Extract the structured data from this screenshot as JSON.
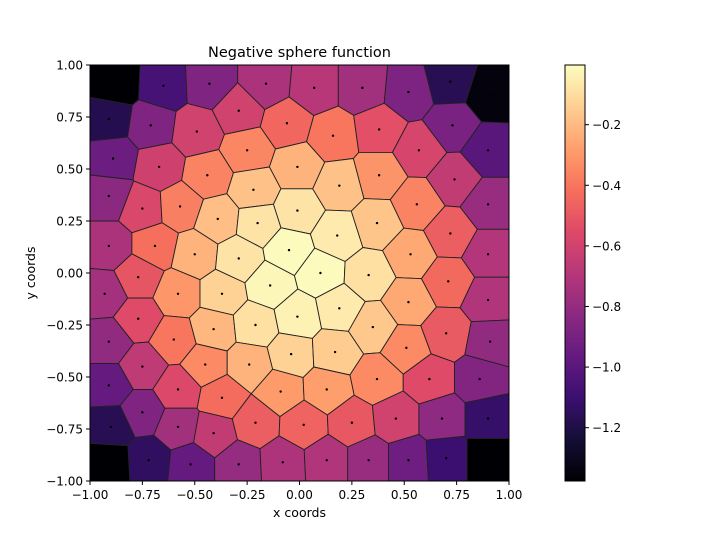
{
  "chart_data": {
    "type": "voronoi",
    "title": "Negative sphere function",
    "xlabel": "x coords",
    "ylabel": "y coords",
    "xlim": [
      -1,
      1
    ],
    "ylim": [
      -1,
      1
    ],
    "xticks": [
      "−1.00",
      "−0.75",
      "−0.50",
      "−0.25",
      "0.00",
      "0.25",
      "0.50",
      "0.75",
      "1.00"
    ],
    "xtick_values": [
      -1,
      -0.75,
      -0.5,
      -0.25,
      0,
      0.25,
      0.5,
      0.75,
      1
    ],
    "yticks": [
      "−1.00",
      "−0.75",
      "−0.50",
      "−0.25",
      "0.00",
      "0.25",
      "0.50",
      "0.75",
      "1.00"
    ],
    "ytick_values": [
      -1,
      -0.75,
      -0.5,
      -0.25,
      0,
      0.25,
      0.5,
      0.75,
      1
    ],
    "colormap": "magma",
    "clim": [
      -1.376,
      -0.003
    ],
    "colorbar_ticks": [
      "−1.2",
      "−1.0",
      "−0.8",
      "−0.6",
      "−0.4",
      "−0.2"
    ],
    "colorbar_tick_values": [
      -1.2,
      -1.0,
      -0.8,
      -0.6,
      -0.4,
      -0.2
    ],
    "magma_stops": [
      "#000004",
      "#140e36",
      "#3b0f70",
      "#641a80",
      "#8c2981",
      "#b73779",
      "#de4968",
      "#f7705c",
      "#fe9f6d",
      "#fecf92",
      "#fcfdbf"
    ],
    "points": [
      [
        -0.88,
        0.91,
        -1.38
      ],
      [
        -0.65,
        0.9,
        -1.06
      ],
      [
        -0.43,
        0.91,
        -0.87
      ],
      [
        -0.16,
        0.91,
        -0.73
      ],
      [
        -0.91,
        0.74,
        -1.18
      ],
      [
        -0.71,
        0.71,
        -0.87
      ],
      [
        -0.49,
        0.68,
        -0.6
      ],
      [
        -0.29,
        0.78,
        -0.6
      ],
      [
        -0.06,
        0.72,
        -0.45
      ],
      [
        -0.89,
        0.55,
        -0.94
      ],
      [
        -0.67,
        0.51,
        -0.61
      ],
      [
        -0.44,
        0.47,
        -0.36
      ],
      [
        -0.25,
        0.59,
        -0.35
      ],
      [
        -0.01,
        0.51,
        -0.22
      ],
      [
        -0.91,
        0.37,
        -0.83
      ],
      [
        -0.75,
        0.31,
        -0.57
      ],
      [
        -0.57,
        0.32,
        -0.37
      ],
      [
        -0.22,
        0.4,
        -0.18
      ],
      [
        -0.39,
        0.26,
        -0.19
      ],
      [
        -0.2,
        0.24,
        -0.08
      ],
      [
        -0.01,
        0.3,
        -0.08
      ],
      [
        -0.91,
        0.13,
        -0.73
      ],
      [
        -0.69,
        0.13,
        -0.42
      ],
      [
        -0.5,
        0.09,
        -0.22
      ],
      [
        -0.29,
        0.07,
        -0.08
      ],
      [
        -0.05,
        0.11,
        -0.01
      ],
      [
        0.07,
        0.89,
        -0.69
      ],
      [
        0.3,
        0.89,
        -0.76
      ],
      [
        0.52,
        0.87,
        -0.88
      ],
      [
        0.72,
        0.92,
        -1.17
      ],
      [
        0.91,
        0.86,
        -1.35
      ],
      [
        0.16,
        0.66,
        -0.4
      ],
      [
        0.38,
        0.69,
        -0.53
      ],
      [
        0.73,
        0.71,
        -0.89
      ],
      [
        0.57,
        0.59,
        -0.58
      ],
      [
        0.9,
        0.59,
        -1.0
      ],
      [
        0.19,
        0.42,
        -0.18
      ],
      [
        0.38,
        0.47,
        -0.31
      ],
      [
        0.74,
        0.45,
        -0.65
      ],
      [
        0.9,
        0.33,
        -0.79
      ],
      [
        0.56,
        0.33,
        -0.36
      ],
      [
        0.18,
        0.18,
        -0.06
      ],
      [
        0.37,
        0.24,
        -0.17
      ],
      [
        0.72,
        0.19,
        -0.48
      ],
      [
        0.53,
        0.09,
        -0.25
      ],
      [
        0.9,
        0.09,
        -0.7
      ],
      [
        0.1,
        0.0,
        -0.01
      ],
      [
        -0.93,
        -0.1,
        -0.75
      ],
      [
        -0.77,
        -0.02,
        -0.51
      ],
      [
        -0.58,
        -0.1,
        -0.3
      ],
      [
        -0.37,
        -0.1,
        -0.13
      ],
      [
        -0.14,
        -0.06,
        -0.02
      ],
      [
        -0.77,
        -0.22,
        -0.55
      ],
      [
        -0.91,
        -0.33,
        -0.81
      ],
      [
        -0.6,
        -0.32,
        -0.4
      ],
      [
        -0.41,
        -0.27,
        -0.21
      ],
      [
        -0.21,
        -0.25,
        -0.09
      ],
      [
        -0.01,
        -0.21,
        -0.04
      ],
      [
        -0.75,
        -0.45,
        -0.66
      ],
      [
        -0.91,
        -0.54,
        -0.96
      ],
      [
        -0.58,
        -0.56,
        -0.56
      ],
      [
        -0.45,
        -0.44,
        -0.34
      ],
      [
        -0.24,
        -0.44,
        -0.22
      ],
      [
        -0.04,
        -0.39,
        -0.13
      ],
      [
        -0.75,
        -0.67,
        -0.87
      ],
      [
        -0.9,
        -0.74,
        -1.17
      ],
      [
        -0.58,
        -0.74,
        -0.76
      ],
      [
        -0.37,
        -0.6,
        -0.43
      ],
      [
        -0.09,
        -0.57,
        -0.29
      ],
      [
        -0.41,
        -0.77,
        -0.65
      ],
      [
        -0.21,
        -0.72,
        -0.48
      ],
      [
        -0.72,
        -0.9,
        -1.14
      ],
      [
        -0.52,
        -0.92,
        -0.96
      ],
      [
        -0.29,
        -0.92,
        -0.8
      ],
      [
        -0.08,
        -0.91,
        -0.72
      ],
      [
        0.33,
        -0.01,
        -0.09
      ],
      [
        0.71,
        -0.04,
        -0.44
      ],
      [
        0.9,
        -0.13,
        -0.71
      ],
      [
        0.19,
        -0.17,
        -0.06
      ],
      [
        0.52,
        -0.14,
        -0.25
      ],
      [
        0.35,
        -0.26,
        -0.16
      ],
      [
        0.7,
        -0.29,
        -0.49
      ],
      [
        0.91,
        -0.33,
        -0.81
      ],
      [
        0.17,
        -0.38,
        -0.15
      ],
      [
        0.51,
        -0.36,
        -0.34
      ],
      [
        0.37,
        -0.51,
        -0.34
      ],
      [
        0.62,
        -0.51,
        -0.55
      ],
      [
        0.86,
        -0.51,
        -0.86
      ],
      [
        0.13,
        -0.56,
        -0.28
      ],
      [
        0.02,
        -0.73,
        -0.46
      ],
      [
        0.25,
        -0.72,
        -0.5
      ],
      [
        0.46,
        -0.7,
        -0.6
      ],
      [
        0.68,
        -0.7,
        -0.82
      ],
      [
        0.9,
        -0.7,
        -1.12
      ],
      [
        0.13,
        -0.9,
        -0.71
      ],
      [
        0.33,
        -0.9,
        -0.79
      ],
      [
        0.52,
        -0.9,
        -0.93
      ],
      [
        0.7,
        -0.89,
        -1.1
      ],
      [
        0.9,
        -0.89,
        -1.38
      ],
      [
        -0.91,
        -0.91,
        -1.38
      ]
    ]
  }
}
